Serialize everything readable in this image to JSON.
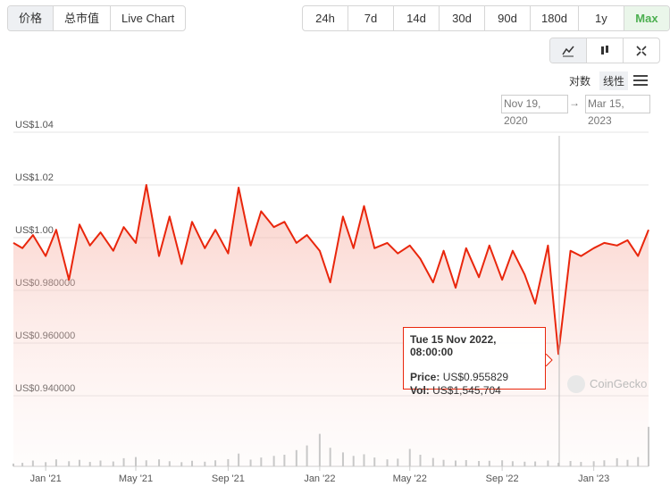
{
  "ui": {
    "tabs": [
      "价格",
      "总市值",
      "Live Chart"
    ],
    "ranges": [
      "24h",
      "7d",
      "14d",
      "30d",
      "90d",
      "180d",
      "1y",
      "Max"
    ],
    "active_range": "Max",
    "scales": [
      "对数",
      "线性"
    ],
    "active_scale": "线性",
    "date_from": "Nov 19, 2020",
    "arrow": "→",
    "date_to": "Mar 15, 2023",
    "watermark": "CoinGecko"
  },
  "chart_data": {
    "type": "line",
    "x": [
      "2020-11-19",
      "2020-12-01",
      "2020-12-15",
      "2021-01-01",
      "2021-01-15",
      "2021-02-01",
      "2021-02-15",
      "2021-03-01",
      "2021-03-15",
      "2021-04-01",
      "2021-04-15",
      "2021-05-01",
      "2021-05-15",
      "2021-06-01",
      "2021-06-15",
      "2021-07-01",
      "2021-07-15",
      "2021-08-01",
      "2021-08-15",
      "2021-09-01",
      "2021-09-15",
      "2021-10-01",
      "2021-10-15",
      "2021-11-01",
      "2021-11-15",
      "2021-12-01",
      "2021-12-15",
      "2022-01-01",
      "2022-01-15",
      "2022-02-01",
      "2022-02-15",
      "2022-03-01",
      "2022-03-15",
      "2022-04-01",
      "2022-04-15",
      "2022-05-01",
      "2022-05-15",
      "2022-06-01",
      "2022-06-15",
      "2022-07-01",
      "2022-07-15",
      "2022-08-01",
      "2022-08-15",
      "2022-09-01",
      "2022-09-15",
      "2022-10-01",
      "2022-10-15",
      "2022-11-01",
      "2022-11-15",
      "2022-12-01",
      "2022-12-15",
      "2023-01-01",
      "2023-01-15",
      "2023-02-01",
      "2023-02-15",
      "2023-03-01",
      "2023-03-15"
    ],
    "series": [
      {
        "name": "Price",
        "color": "#e9260c",
        "values": [
          0.998,
          0.996,
          1.001,
          0.993,
          1.003,
          0.984,
          1.005,
          0.997,
          1.002,
          0.995,
          1.004,
          0.998,
          1.02,
          0.993,
          1.008,
          0.99,
          1.006,
          0.996,
          1.003,
          0.994,
          1.019,
          0.997,
          1.01,
          1.004,
          1.006,
          0.998,
          1.001,
          0.995,
          0.983,
          1.008,
          0.996,
          1.012,
          0.996,
          0.998,
          0.994,
          0.997,
          0.992,
          0.983,
          0.995,
          0.981,
          0.996,
          0.985,
          0.997,
          0.984,
          0.995,
          0.986,
          0.975,
          0.997,
          0.955829,
          0.995,
          0.993,
          0.996,
          0.998,
          0.997,
          0.999,
          0.993,
          1.003
        ]
      },
      {
        "name": "Vol",
        "color": "#c8c8c8",
        "axis": "y2",
        "values": [
          1200000,
          1500000,
          2500000,
          1800000,
          3000000,
          2200000,
          2800000,
          1900000,
          2500000,
          2100000,
          3500000,
          4000000,
          2600000,
          3000000,
          2200000,
          1800000,
          2400000,
          2000000,
          2600000,
          3100000,
          5500000,
          2900000,
          3800000,
          4500000,
          5000000,
          7000000,
          9000000,
          14000000,
          8000000,
          6000000,
          4500000,
          5200000,
          3800000,
          3000000,
          3300000,
          7500000,
          5000000,
          3600000,
          2800000,
          2500000,
          2700000,
          2300000,
          2400000,
          2600000,
          2200000,
          2000000,
          2100000,
          2500000,
          1545704,
          2300000,
          1900000,
          2200000,
          2600000,
          3500000,
          2800000,
          4000000,
          17000000
        ]
      }
    ],
    "xlim": [
      "2020-11-19",
      "2023-03-15"
    ],
    "xticks": [
      {
        "value": "2021-01-01",
        "label": "Jan '21"
      },
      {
        "value": "2021-05-01",
        "label": "May '21"
      },
      {
        "value": "2021-09-01",
        "label": "Sep '21"
      },
      {
        "value": "2022-01-01",
        "label": "Jan '22"
      },
      {
        "value": "2022-05-01",
        "label": "May '22"
      },
      {
        "value": "2022-09-01",
        "label": "Sep '22"
      },
      {
        "value": "2023-01-01",
        "label": "Jan '23"
      }
    ],
    "ylim": [
      0.93,
      1.045
    ],
    "yticks": [
      {
        "value": 0.94,
        "label": "US$0.940000"
      },
      {
        "value": 0.96,
        "label": "US$0.960000"
      },
      {
        "value": 0.98,
        "label": "US$0.980000"
      },
      {
        "value": 1.0,
        "label": "US$1.00"
      },
      {
        "value": 1.02,
        "label": "US$1.02"
      },
      {
        "value": 1.04,
        "label": "US$1.04"
      }
    ],
    "y2lim": [
      0,
      20000000
    ],
    "grid": true,
    "tooltip": {
      "title": "Tue 15 Nov 2022, 08:00:00",
      "rows": [
        {
          "label": "Price:",
          "value": "US$0.955829"
        },
        {
          "label": "Vol:",
          "value": "US$1,545,704"
        }
      ]
    }
  }
}
